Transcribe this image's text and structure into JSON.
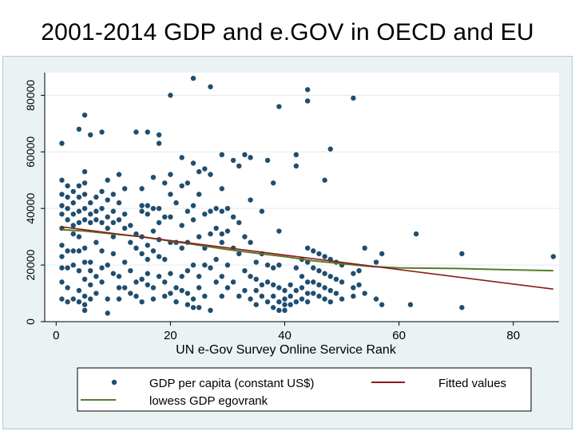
{
  "page": {
    "title": "2001-2014 GDP and e.GOV in OECD and EU"
  },
  "chart_data": {
    "type": "scatter",
    "xlabel": "UN e-Gov Survey Online Service Rank",
    "ylabel": "",
    "xlim": [
      -2,
      88
    ],
    "ylim": [
      0,
      88000
    ],
    "x_ticks": [
      0,
      20,
      40,
      60,
      80
    ],
    "y_ticks": [
      0,
      20000,
      40000,
      60000,
      80000
    ],
    "x_tick_labels": [
      "0",
      "20",
      "40",
      "60",
      "80"
    ],
    "y_tick_labels": [
      "0",
      "20000",
      "40000",
      "60000",
      "80000"
    ],
    "grid": true,
    "legend_position": "bottom",
    "colors": {
      "points": "#1f4e6e",
      "fitted": "#8b1a1a",
      "lowess": "#5a7a2a",
      "plot_bg": "#ffffff",
      "frame_bg": "#eaf2f3"
    },
    "series": [
      {
        "name": "GDP per capita (constant US$)",
        "kind": "scatter",
        "points": [
          [
            1,
            63000
          ],
          [
            1,
            50000
          ],
          [
            1,
            45000
          ],
          [
            1,
            41000
          ],
          [
            1,
            38000
          ],
          [
            1,
            33000
          ],
          [
            1,
            27000
          ],
          [
            1,
            23000
          ],
          [
            1,
            19000
          ],
          [
            1,
            14000
          ],
          [
            1,
            8000
          ],
          [
            2,
            48000
          ],
          [
            2,
            44000
          ],
          [
            2,
            40000
          ],
          [
            2,
            36000
          ],
          [
            2,
            25000
          ],
          [
            2,
            19000
          ],
          [
            2,
            12000
          ],
          [
            2,
            7000
          ],
          [
            3,
            46000
          ],
          [
            3,
            42000
          ],
          [
            3,
            38000
          ],
          [
            3,
            34000
          ],
          [
            3,
            31000
          ],
          [
            3,
            25000
          ],
          [
            3,
            20000
          ],
          [
            3,
            8000
          ],
          [
            4,
            68000
          ],
          [
            4,
            48000
          ],
          [
            4,
            44000
          ],
          [
            4,
            39000
          ],
          [
            4,
            35000
          ],
          [
            4,
            30000
          ],
          [
            4,
            25000
          ],
          [
            4,
            18000
          ],
          [
            4,
            11000
          ],
          [
            4,
            7000
          ],
          [
            5,
            73000
          ],
          [
            5,
            53000
          ],
          [
            5,
            49000
          ],
          [
            5,
            45000
          ],
          [
            5,
            40000
          ],
          [
            5,
            36000
          ],
          [
            5,
            26000
          ],
          [
            5,
            21000
          ],
          [
            5,
            15000
          ],
          [
            5,
            9000
          ],
          [
            5,
            6000
          ],
          [
            5,
            4000
          ],
          [
            6,
            66000
          ],
          [
            6,
            42000
          ],
          [
            6,
            38000
          ],
          [
            6,
            35000
          ],
          [
            6,
            21000
          ],
          [
            6,
            18000
          ],
          [
            6,
            13000
          ],
          [
            6,
            8000
          ],
          [
            7,
            44000
          ],
          [
            7,
            39000
          ],
          [
            7,
            36000
          ],
          [
            7,
            28000
          ],
          [
            7,
            16000
          ],
          [
            7,
            10000
          ],
          [
            8,
            67000
          ],
          [
            8,
            46000
          ],
          [
            8,
            40000
          ],
          [
            8,
            35000
          ],
          [
            8,
            25000
          ],
          [
            8,
            19000
          ],
          [
            8,
            14000
          ],
          [
            9,
            50000
          ],
          [
            9,
            43000
          ],
          [
            9,
            37000
          ],
          [
            9,
            33000
          ],
          [
            9,
            20000
          ],
          [
            9,
            8000
          ],
          [
            9,
            3000
          ],
          [
            10,
            45000
          ],
          [
            10,
            39000
          ],
          [
            10,
            35000
          ],
          [
            10,
            30000
          ],
          [
            10,
            24000
          ],
          [
            10,
            17000
          ],
          [
            11,
            52000
          ],
          [
            11,
            42000
          ],
          [
            11,
            36000
          ],
          [
            11,
            16000
          ],
          [
            11,
            12000
          ],
          [
            11,
            8000
          ],
          [
            12,
            47000
          ],
          [
            12,
            38000
          ],
          [
            12,
            33000
          ],
          [
            12,
            21000
          ],
          [
            12,
            12000
          ],
          [
            13,
            34000
          ],
          [
            13,
            28000
          ],
          [
            13,
            18000
          ],
          [
            13,
            10000
          ],
          [
            14,
            67000
          ],
          [
            14,
            31000
          ],
          [
            14,
            26000
          ],
          [
            14,
            14000
          ],
          [
            14,
            9000
          ],
          [
            15,
            47000
          ],
          [
            15,
            41000
          ],
          [
            15,
            39000
          ],
          [
            15,
            30000
          ],
          [
            15,
            24000
          ],
          [
            15,
            15000
          ],
          [
            15,
            7000
          ],
          [
            16,
            67000
          ],
          [
            16,
            41000
          ],
          [
            16,
            38000
          ],
          [
            16,
            27000
          ],
          [
            16,
            22000
          ],
          [
            16,
            17000
          ],
          [
            16,
            13000
          ],
          [
            17,
            51000
          ],
          [
            17,
            40000
          ],
          [
            17,
            32000
          ],
          [
            17,
            25000
          ],
          [
            17,
            12000
          ],
          [
            17,
            8000
          ],
          [
            18,
            66000
          ],
          [
            18,
            63000
          ],
          [
            18,
            40000
          ],
          [
            18,
            35000
          ],
          [
            18,
            29000
          ],
          [
            18,
            23000
          ],
          [
            18,
            16000
          ],
          [
            19,
            49000
          ],
          [
            19,
            37000
          ],
          [
            19,
            22000
          ],
          [
            19,
            14000
          ],
          [
            19,
            9000
          ],
          [
            20,
            80000
          ],
          [
            20,
            52000
          ],
          [
            20,
            45000
          ],
          [
            20,
            37000
          ],
          [
            20,
            28000
          ],
          [
            20,
            17000
          ],
          [
            20,
            10000
          ],
          [
            21,
            42000
          ],
          [
            21,
            28000
          ],
          [
            21,
            12000
          ],
          [
            21,
            7000
          ],
          [
            22,
            58000
          ],
          [
            22,
            48000
          ],
          [
            22,
            34000
          ],
          [
            22,
            26000
          ],
          [
            22,
            16000
          ],
          [
            22,
            11000
          ],
          [
            23,
            49000
          ],
          [
            23,
            39000
          ],
          [
            23,
            28000
          ],
          [
            23,
            18000
          ],
          [
            23,
            10000
          ],
          [
            23,
            6000
          ],
          [
            24,
            86000
          ],
          [
            24,
            56000
          ],
          [
            24,
            41000
          ],
          [
            24,
            36000
          ],
          [
            24,
            20000
          ],
          [
            24,
            8000
          ],
          [
            24,
            5000
          ],
          [
            25,
            53000
          ],
          [
            25,
            45000
          ],
          [
            25,
            30000
          ],
          [
            25,
            16000
          ],
          [
            25,
            12000
          ],
          [
            25,
            5000
          ],
          [
            26,
            54000
          ],
          [
            26,
            38000
          ],
          [
            26,
            26000
          ],
          [
            26,
            20000
          ],
          [
            26,
            9000
          ],
          [
            27,
            83000
          ],
          [
            27,
            52000
          ],
          [
            27,
            39000
          ],
          [
            27,
            31000
          ],
          [
            27,
            19000
          ],
          [
            27,
            4000
          ],
          [
            28,
            40000
          ],
          [
            28,
            33000
          ],
          [
            28,
            22000
          ],
          [
            28,
            14000
          ],
          [
            29,
            59000
          ],
          [
            29,
            47000
          ],
          [
            29,
            39000
          ],
          [
            29,
            31000
          ],
          [
            29,
            28000
          ],
          [
            29,
            16000
          ],
          [
            29,
            9000
          ],
          [
            30,
            40000
          ],
          [
            30,
            32000
          ],
          [
            30,
            20000
          ],
          [
            30,
            12000
          ],
          [
            31,
            57000
          ],
          [
            31,
            37000
          ],
          [
            31,
            26000
          ],
          [
            31,
            14000
          ],
          [
            32,
            55000
          ],
          [
            32,
            35000
          ],
          [
            32,
            24000
          ],
          [
            32,
            9000
          ],
          [
            33,
            59000
          ],
          [
            33,
            30000
          ],
          [
            33,
            18000
          ],
          [
            33,
            11000
          ],
          [
            34,
            58000
          ],
          [
            34,
            43000
          ],
          [
            34,
            28000
          ],
          [
            34,
            16000
          ],
          [
            34,
            8000
          ],
          [
            35,
            21000
          ],
          [
            35,
            15000
          ],
          [
            35,
            11000
          ],
          [
            35,
            6000
          ],
          [
            36,
            39000
          ],
          [
            36,
            24000
          ],
          [
            36,
            13000
          ],
          [
            36,
            9000
          ],
          [
            37,
            57000
          ],
          [
            37,
            20000
          ],
          [
            37,
            14000
          ],
          [
            37,
            7000
          ],
          [
            38,
            49000
          ],
          [
            38,
            19000
          ],
          [
            38,
            13000
          ],
          [
            38,
            9000
          ],
          [
            38,
            5000
          ],
          [
            39,
            76000
          ],
          [
            39,
            32000
          ],
          [
            39,
            20000
          ],
          [
            39,
            12000
          ],
          [
            39,
            7000
          ],
          [
            39,
            4000
          ],
          [
            40,
            11000
          ],
          [
            40,
            8000
          ],
          [
            40,
            6000
          ],
          [
            40,
            4000
          ],
          [
            41,
            13000
          ],
          [
            41,
            9000
          ],
          [
            41,
            6000
          ],
          [
            42,
            59000
          ],
          [
            42,
            55000
          ],
          [
            42,
            19000
          ],
          [
            42,
            11000
          ],
          [
            42,
            7000
          ],
          [
            43,
            22000
          ],
          [
            43,
            16000
          ],
          [
            43,
            12000
          ],
          [
            43,
            8000
          ],
          [
            44,
            82000
          ],
          [
            44,
            78000
          ],
          [
            44,
            26000
          ],
          [
            44,
            21000
          ],
          [
            44,
            14000
          ],
          [
            44,
            10000
          ],
          [
            44,
            7000
          ],
          [
            45,
            25000
          ],
          [
            45,
            19000
          ],
          [
            45,
            14000
          ],
          [
            45,
            10000
          ],
          [
            46,
            24000
          ],
          [
            46,
            18000
          ],
          [
            46,
            13000
          ],
          [
            46,
            9000
          ],
          [
            47,
            50000
          ],
          [
            47,
            23000
          ],
          [
            47,
            17000
          ],
          [
            47,
            12000
          ],
          [
            47,
            8000
          ],
          [
            48,
            61000
          ],
          [
            48,
            22000
          ],
          [
            48,
            16000
          ],
          [
            48,
            11000
          ],
          [
            48,
            7000
          ],
          [
            49,
            21000
          ],
          [
            49,
            15000
          ],
          [
            49,
            10000
          ],
          [
            50,
            20000
          ],
          [
            50,
            14000
          ],
          [
            50,
            8000
          ],
          [
            52,
            79000
          ],
          [
            52,
            17000
          ],
          [
            52,
            12000
          ],
          [
            52,
            9000
          ],
          [
            53,
            18000
          ],
          [
            53,
            13000
          ],
          [
            54,
            26000
          ],
          [
            54,
            10000
          ],
          [
            56,
            21000
          ],
          [
            56,
            8000
          ],
          [
            57,
            24000
          ],
          [
            57,
            6000
          ],
          [
            62,
            6000
          ],
          [
            63,
            31000
          ],
          [
            71,
            24000
          ],
          [
            71,
            5000
          ],
          [
            87,
            23000
          ]
        ]
      },
      {
        "name": "Fitted values",
        "kind": "line",
        "points": [
          [
            1,
            33500
          ],
          [
            87,
            11500
          ]
        ]
      },
      {
        "name": "lowess GDP egovrank",
        "kind": "line",
        "points": [
          [
            1,
            32500
          ],
          [
            5,
            32000
          ],
          [
            10,
            31000
          ],
          [
            15,
            30000
          ],
          [
            20,
            28500
          ],
          [
            25,
            27000
          ],
          [
            30,
            25500
          ],
          [
            35,
            24200
          ],
          [
            40,
            23000
          ],
          [
            45,
            21500
          ],
          [
            50,
            20500
          ],
          [
            55,
            19500
          ],
          [
            60,
            19000
          ],
          [
            70,
            18800
          ],
          [
            80,
            18300
          ],
          [
            87,
            18000
          ]
        ]
      }
    ]
  }
}
